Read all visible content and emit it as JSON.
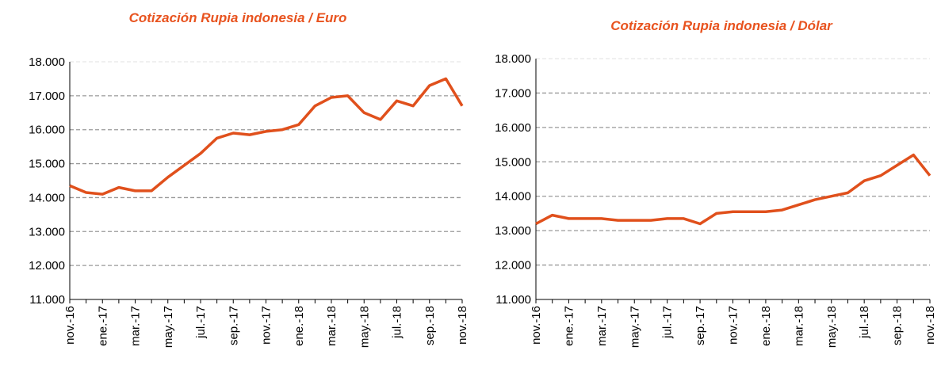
{
  "chart_data": [
    {
      "type": "line",
      "title": "Cotización Rupia indonesia / Euro",
      "categories": [
        "nov.-16",
        null,
        "ene.-17",
        null,
        "mar.-17",
        null,
        "may.-17",
        null,
        "jul.-17",
        null,
        "sep.-17",
        null,
        "nov.-17",
        null,
        "ene.-18",
        null,
        "mar.-18",
        null,
        "may.-18",
        null,
        "jul.-18",
        null,
        "sep.-18",
        null,
        "nov.-18"
      ],
      "values": [
        14350,
        14150,
        14100,
        14300,
        14200,
        14200,
        14600,
        14950,
        15300,
        15750,
        15900,
        15850,
        15950,
        16000,
        16150,
        16700,
        16950,
        17000,
        16500,
        16300,
        16850,
        16700,
        17300,
        17500,
        16700
      ],
      "color": "#e0501c",
      "ylim": [
        11000,
        18000
      ],
      "yticks": [
        {
          "value": 11000,
          "label": "11.000"
        },
        {
          "value": 12000,
          "label": "12.000"
        },
        {
          "value": 13000,
          "label": "13.000"
        },
        {
          "value": 14000,
          "label": "14.000"
        },
        {
          "value": 15000,
          "label": "15.000"
        },
        {
          "value": 16000,
          "label": "16.000"
        },
        {
          "value": 17000,
          "label": "17.000"
        },
        {
          "value": 18000,
          "label": "18.000"
        }
      ],
      "grid": true
    },
    {
      "type": "line",
      "title": "Cotización Rupia indonesia / Dólar",
      "categories": [
        "nov.-16",
        null,
        "ene.-17",
        null,
        "mar.-17",
        null,
        "may.-17",
        null,
        "jul.-17",
        null,
        "sep.-17",
        null,
        "nov.-17",
        null,
        "ene.-18",
        null,
        "mar.-18",
        null,
        "may.-18",
        null,
        "jul.-18",
        null,
        "sep.-18",
        null,
        "nov.-18"
      ],
      "values": [
        13200,
        13450,
        13350,
        13350,
        13350,
        13300,
        13300,
        13300,
        13350,
        13350,
        13200,
        13500,
        13550,
        13550,
        13550,
        13600,
        13750,
        13900,
        14000,
        14100,
        14450,
        14600,
        14900,
        15200,
        14600
      ],
      "color": "#e0501c",
      "ylim": [
        11000,
        18000
      ],
      "yticks": [
        {
          "value": 11000,
          "label": "11.000"
        },
        {
          "value": 12000,
          "label": "12.000"
        },
        {
          "value": 13000,
          "label": "13.000"
        },
        {
          "value": 14000,
          "label": "14.000"
        },
        {
          "value": 15000,
          "label": "15.000"
        },
        {
          "value": 16000,
          "label": "16.000"
        },
        {
          "value": 17000,
          "label": "17.000"
        },
        {
          "value": 18000,
          "label": "18.000"
        }
      ],
      "grid": true
    }
  ]
}
